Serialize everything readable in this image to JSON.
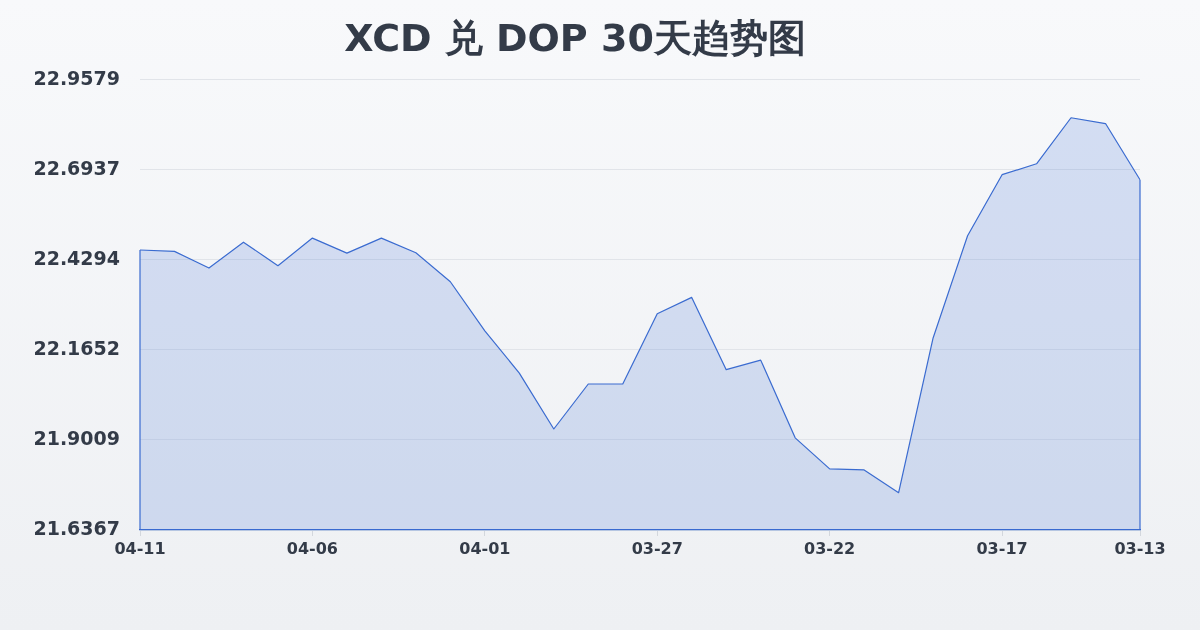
{
  "chart_data": {
    "type": "area",
    "title": "XCD 兑 DOP 30天趋势图",
    "categories": [
      "04-11",
      null,
      null,
      null,
      null,
      "04-06",
      null,
      null,
      null,
      null,
      "04-01",
      null,
      null,
      null,
      null,
      "03-27",
      null,
      null,
      null,
      null,
      "03-22",
      null,
      null,
      null,
      null,
      "03-17",
      null,
      null,
      null,
      "03-13"
    ],
    "values": [
      22.458,
      22.454,
      22.405,
      22.481,
      22.412,
      22.493,
      22.449,
      22.493,
      22.45,
      22.365,
      22.221,
      22.097,
      21.933,
      22.065,
      22.065,
      22.271,
      22.319,
      22.107,
      22.135,
      21.907,
      21.816,
      21.813,
      21.746,
      22.2,
      22.5,
      22.679,
      22.711,
      22.846,
      22.829,
      22.664
    ],
    "color": "#3a6bd0",
    "ylim": [
      21.6367,
      22.9579
    ],
    "yticks": [
      21.6367,
      21.9009,
      22.1652,
      22.4294,
      22.6937,
      22.9579
    ],
    "grid": "y",
    "marker": "none"
  }
}
